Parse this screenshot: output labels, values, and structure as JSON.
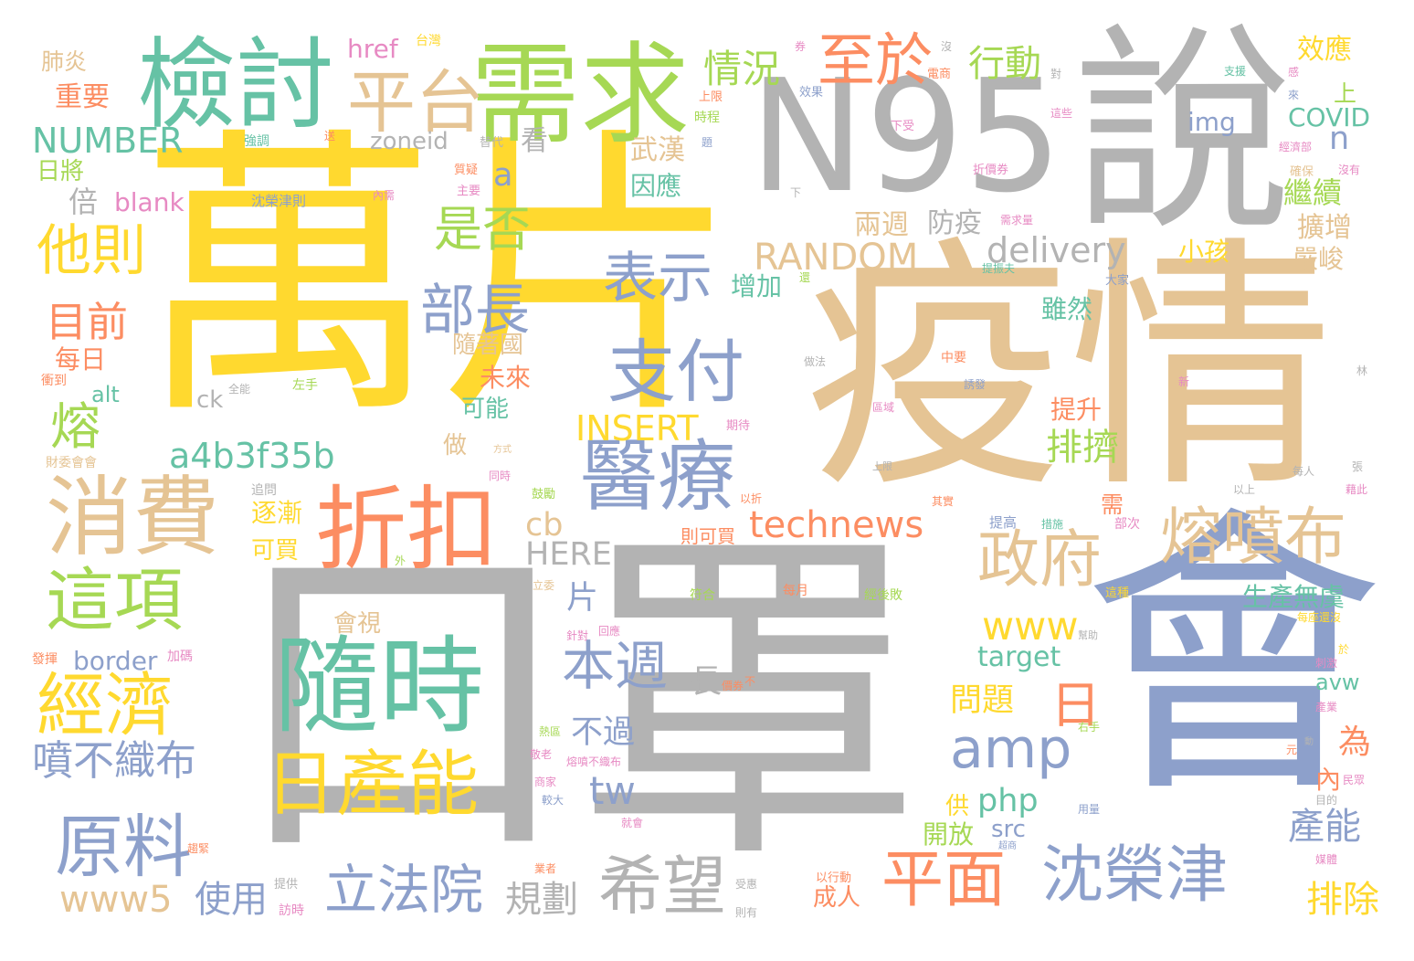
{
  "palette": {
    "yellow": "#ffd92f",
    "gray": "#b3b3b3",
    "tan": "#e5c494",
    "blue": "#8da0cb",
    "green": "#66c2a5",
    "lime": "#a6d854",
    "orange": "#fc8d62",
    "pink": "#e78ac3"
  },
  "words": [
    {
      "text": "萬片",
      "color": "yellow"
    },
    {
      "text": "口罩",
      "color": "gray"
    },
    {
      "text": "疫情",
      "color": "tan"
    },
    {
      "text": "N95",
      "color": "gray"
    },
    {
      "text": "說",
      "color": "gray"
    },
    {
      "text": "會",
      "color": "blue"
    },
    {
      "text": "需求",
      "color": "lime"
    },
    {
      "text": "檢討",
      "color": "green"
    },
    {
      "text": "隨時",
      "color": "green"
    },
    {
      "text": "折扣",
      "color": "orange"
    },
    {
      "text": "消費",
      "color": "tan"
    },
    {
      "text": "醫療",
      "color": "blue"
    },
    {
      "text": "日產能",
      "color": "yellow"
    },
    {
      "text": "支付",
      "color": "blue"
    },
    {
      "text": "經濟",
      "color": "yellow"
    },
    {
      "text": "這項",
      "color": "lime"
    },
    {
      "text": "原料",
      "color": "blue"
    },
    {
      "text": "沈榮津",
      "color": "blue"
    },
    {
      "text": "熔噴布",
      "color": "tan"
    },
    {
      "text": "政府",
      "color": "tan"
    },
    {
      "text": "平面",
      "color": "orange"
    },
    {
      "text": "希望",
      "color": "gray"
    },
    {
      "text": "立法院",
      "color": "blue"
    },
    {
      "text": "平台",
      "color": "tan"
    },
    {
      "text": "至於",
      "color": "orange"
    },
    {
      "text": "amp",
      "color": "blue"
    },
    {
      "text": "部長",
      "color": "blue"
    },
    {
      "text": "表示",
      "color": "blue"
    },
    {
      "text": "technews",
      "color": "orange"
    },
    {
      "text": "是否",
      "color": "lime"
    },
    {
      "text": "他則",
      "color": "yellow"
    },
    {
      "text": "本週",
      "color": "blue"
    },
    {
      "text": "噴不織布",
      "color": "blue"
    },
    {
      "text": "www5",
      "color": "tan"
    },
    {
      "text": "使用",
      "color": "blue"
    },
    {
      "text": "規劃",
      "color": "gray"
    },
    {
      "text": "a4b3f35b",
      "color": "green"
    },
    {
      "text": "INSERT",
      "color": "yellow"
    },
    {
      "text": "RANDOM",
      "color": "tan"
    },
    {
      "text": "delivery",
      "color": "gray"
    },
    {
      "text": "NUMBER",
      "color": "green"
    },
    {
      "text": "www",
      "color": "yellow"
    },
    {
      "text": "情況",
      "color": "lime"
    },
    {
      "text": "行動",
      "color": "lime"
    },
    {
      "text": "目前",
      "color": "orange"
    },
    {
      "text": "熔",
      "color": "lime"
    },
    {
      "text": "日",
      "color": "orange"
    },
    {
      "text": "排擠",
      "color": "lime"
    },
    {
      "text": "產能",
      "color": "blue"
    },
    {
      "text": "排除",
      "color": "yellow"
    },
    {
      "text": "HERE",
      "color": "gray"
    },
    {
      "text": "cb",
      "color": "tan"
    },
    {
      "text": "tw",
      "color": "blue"
    },
    {
      "text": "php",
      "color": "green"
    },
    {
      "text": "長",
      "color": "gray"
    },
    {
      "text": "片",
      "color": "blue"
    },
    {
      "text": "不過",
      "color": "blue"
    },
    {
      "text": "問題",
      "color": "yellow"
    },
    {
      "text": "a",
      "color": "blue"
    },
    {
      "text": "n",
      "color": "blue"
    },
    {
      "text": "看",
      "color": "gray"
    },
    {
      "text": "倍",
      "color": "gray"
    },
    {
      "text": "blank",
      "color": "pink"
    },
    {
      "text": "href",
      "color": "pink"
    },
    {
      "text": "zoneid",
      "color": "gray"
    },
    {
      "text": "img",
      "color": "blue"
    },
    {
      "text": "COVID",
      "color": "green"
    },
    {
      "text": "效應",
      "color": "yellow"
    },
    {
      "text": "繼續",
      "color": "lime"
    },
    {
      "text": "擴增",
      "color": "tan"
    },
    {
      "text": "嚴峻",
      "color": "tan"
    },
    {
      "text": "小孩",
      "color": "yellow"
    },
    {
      "text": "防疫",
      "color": "gray"
    },
    {
      "text": "兩週",
      "color": "tan"
    },
    {
      "text": "增加",
      "color": "green"
    },
    {
      "text": "雖然",
      "color": "green"
    },
    {
      "text": "武漢",
      "color": "tan"
    },
    {
      "text": "因應",
      "color": "green"
    },
    {
      "text": "重要",
      "color": "orange"
    },
    {
      "text": "肺炎",
      "color": "tan"
    },
    {
      "text": "日將",
      "color": "lime"
    },
    {
      "text": "每日",
      "color": "orange"
    },
    {
      "text": "alt",
      "color": "green"
    },
    {
      "text": "ck",
      "color": "gray"
    },
    {
      "text": "border",
      "color": "blue"
    },
    {
      "text": "會視",
      "color": "tan"
    },
    {
      "text": "逐漸",
      "color": "yellow"
    },
    {
      "text": "可買",
      "color": "yellow"
    },
    {
      "text": "可能",
      "color": "green"
    },
    {
      "text": "做",
      "color": "tan"
    },
    {
      "text": "未來",
      "color": "orange"
    },
    {
      "text": "隨著國",
      "color": "tan"
    },
    {
      "text": "提升",
      "color": "orange"
    },
    {
      "text": "生產無虞",
      "color": "green"
    },
    {
      "text": "開放",
      "color": "lime"
    },
    {
      "text": "成人",
      "color": "orange"
    },
    {
      "text": "為",
      "color": "orange"
    },
    {
      "text": "內",
      "color": "orange"
    },
    {
      "text": "供",
      "color": "yellow"
    },
    {
      "text": "src",
      "color": "blue"
    },
    {
      "text": "target",
      "color": "green"
    },
    {
      "text": "avw",
      "color": "green"
    },
    {
      "text": "上",
      "color": "lime"
    },
    {
      "text": "需",
      "color": "orange"
    },
    {
      "text": "則可買",
      "color": "orange"
    },
    {
      "text": "每月",
      "color": "orange"
    },
    {
      "text": "符合",
      "color": "lime"
    },
    {
      "text": "經後敗",
      "color": "lime"
    },
    {
      "text": "沈榮津則",
      "color": "blue"
    },
    {
      "text": "衝到",
      "color": "orange"
    },
    {
      "text": "全能",
      "color": "gray"
    },
    {
      "text": "左手",
      "color": "lime"
    },
    {
      "text": "右手",
      "color": "lime"
    },
    {
      "text": "追問",
      "color": "gray"
    },
    {
      "text": "提高",
      "color": "blue"
    },
    {
      "text": "措施",
      "color": "green"
    },
    {
      "text": "部次",
      "color": "pink"
    },
    {
      "text": "以上",
      "color": "gray"
    },
    {
      "text": "每人",
      "color": "gray"
    },
    {
      "text": "財委會會",
      "color": "tan"
    },
    {
      "text": "發揮",
      "color": "orange"
    },
    {
      "text": "加碼",
      "color": "pink"
    },
    {
      "text": "台灣",
      "color": "yellow"
    },
    {
      "text": "電商",
      "color": "orange"
    },
    {
      "text": "支援",
      "color": "green"
    },
    {
      "text": "經濟部",
      "color": "pink"
    },
    {
      "text": "確保",
      "color": "tan"
    },
    {
      "text": "沒有",
      "color": "pink"
    },
    {
      "text": "大家",
      "color": "blue"
    },
    {
      "text": "中要",
      "color": "orange"
    },
    {
      "text": "下受",
      "color": "pink"
    },
    {
      "text": "折價券",
      "color": "pink"
    },
    {
      "text": "需求量",
      "color": "pink"
    },
    {
      "text": "提振夫",
      "color": "green"
    },
    {
      "text": "誘發",
      "color": "blue"
    },
    {
      "text": "區域",
      "color": "pink"
    },
    {
      "text": "期待",
      "color": "pink"
    },
    {
      "text": "上限",
      "color": "orange"
    },
    {
      "text": "時程",
      "color": "lime"
    },
    {
      "text": "效果",
      "color": "blue"
    },
    {
      "text": "強調",
      "color": "green"
    },
    {
      "text": "替代",
      "color": "gray"
    },
    {
      "text": "質疑",
      "color": "orange"
    },
    {
      "text": "主要",
      "color": "pink"
    },
    {
      "text": "內需",
      "color": "pink"
    },
    {
      "text": "以折",
      "color": "orange"
    },
    {
      "text": "鼓勵",
      "color": "lime"
    },
    {
      "text": "其實",
      "color": "orange"
    },
    {
      "text": "同時",
      "color": "pink"
    },
    {
      "text": "方式",
      "color": "tan"
    },
    {
      "text": "立委",
      "color": "tan"
    },
    {
      "text": "外",
      "color": "lime"
    },
    {
      "text": "針對",
      "color": "pink"
    },
    {
      "text": "回應",
      "color": "pink"
    },
    {
      "text": "幫助",
      "color": "gray"
    },
    {
      "text": "這種",
      "color": "yellow"
    },
    {
      "text": "每座還沒",
      "color": "yellow"
    },
    {
      "text": "刺激",
      "color": "pink"
    },
    {
      "text": "產業",
      "color": "pink"
    },
    {
      "text": "民眾",
      "color": "pink"
    },
    {
      "text": "目的",
      "color": "gray"
    },
    {
      "text": "用量",
      "color": "blue"
    },
    {
      "text": "超商",
      "color": "blue"
    },
    {
      "text": "媒體",
      "color": "pink"
    },
    {
      "text": "熔噴不織布",
      "color": "pink"
    },
    {
      "text": "商家",
      "color": "pink"
    },
    {
      "text": "較大",
      "color": "blue"
    },
    {
      "text": "就會",
      "color": "pink"
    },
    {
      "text": "業者",
      "color": "orange"
    },
    {
      "text": "提供",
      "color": "gray"
    },
    {
      "text": "受惠",
      "color": "gray"
    },
    {
      "text": "以行動",
      "color": "orange"
    },
    {
      "text": "訪時",
      "color": "pink"
    },
    {
      "text": "則有",
      "color": "gray"
    },
    {
      "text": "趨緊",
      "color": "orange"
    },
    {
      "text": "熱區",
      "color": "lime"
    },
    {
      "text": "敬老",
      "color": "pink"
    },
    {
      "text": "價券",
      "color": "orange"
    },
    {
      "text": "新",
      "color": "pink"
    },
    {
      "text": "林",
      "color": "gray"
    },
    {
      "text": "張",
      "color": "gray"
    },
    {
      "text": "藉此",
      "color": "pink"
    },
    {
      "text": "元",
      "color": "orange"
    },
    {
      "text": "動",
      "color": "gray"
    },
    {
      "text": "來",
      "color": "blue"
    },
    {
      "text": "感",
      "color": "pink"
    },
    {
      "text": "對",
      "color": "gray"
    },
    {
      "text": "沒",
      "color": "gray"
    },
    {
      "text": "券",
      "color": "pink"
    },
    {
      "text": "送",
      "color": "orange"
    },
    {
      "text": "題",
      "color": "blue"
    },
    {
      "text": "下",
      "color": "gray"
    },
    {
      "text": "還",
      "color": "lime"
    },
    {
      "text": "於",
      "color": "yellow"
    },
    {
      "text": "不",
      "color": "orange"
    },
    {
      "text": "這些",
      "color": "pink"
    },
    {
      "text": "做法",
      "color": "gray"
    },
    {
      "text": "上限",
      "color": "gray"
    }
  ]
}
